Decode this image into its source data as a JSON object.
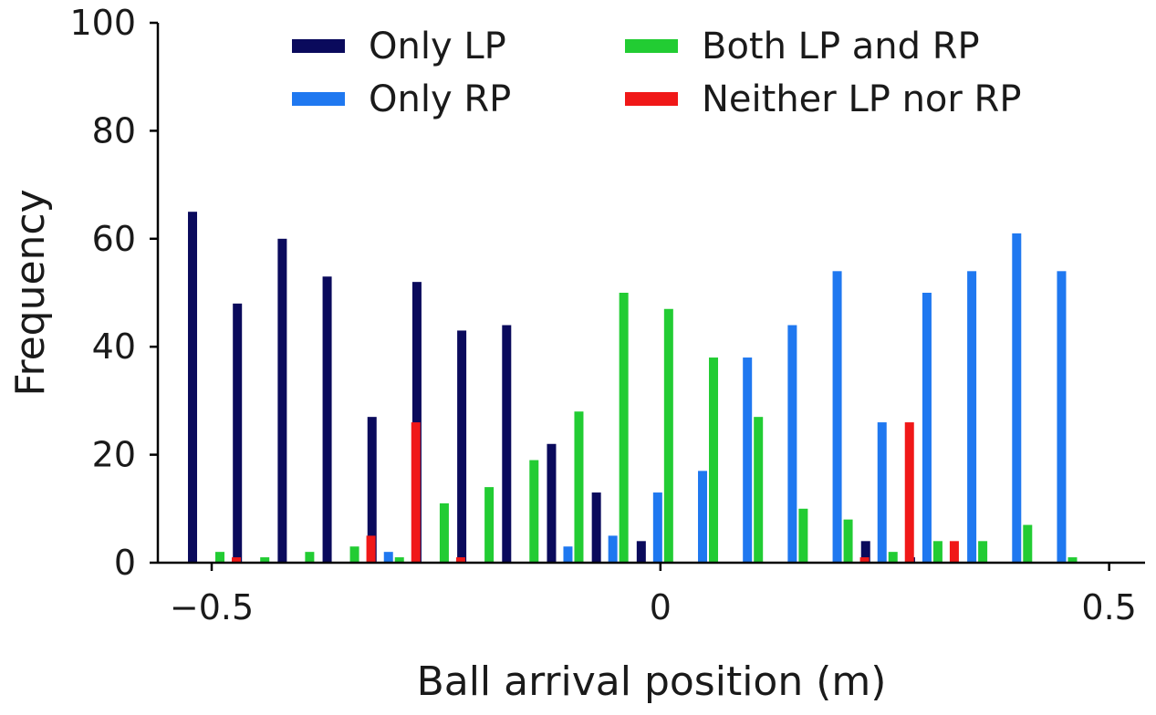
{
  "chart_data": {
    "type": "bar",
    "title": "",
    "xlabel": "Ball arrival position (m)",
    "ylabel": "Frequency",
    "xlim": [
      -0.56,
      0.54
    ],
    "ylim": [
      0,
      100
    ],
    "xticks": [
      {
        "value": -0.5,
        "label": "−0.5"
      },
      {
        "value": 0,
        "label": "0"
      },
      {
        "value": 0.5,
        "label": "0.5"
      }
    ],
    "yticks": [
      {
        "value": 0,
        "label": "0"
      },
      {
        "value": 20,
        "label": "20"
      },
      {
        "value": 40,
        "label": "40"
      },
      {
        "value": 60,
        "label": "60"
      },
      {
        "value": 80,
        "label": "80"
      },
      {
        "value": 100,
        "label": "100"
      }
    ],
    "grid": false,
    "legend_position": "top",
    "x": [
      -0.5,
      -0.45,
      -0.4,
      -0.35,
      -0.3,
      -0.25,
      -0.2,
      -0.15,
      -0.1,
      -0.05,
      0.0,
      0.05,
      0.1,
      0.15,
      0.2,
      0.25,
      0.3,
      0.35,
      0.4,
      0.45,
      0.5
    ],
    "series": [
      {
        "name": "Only LP",
        "color": "#0a0a5c",
        "values": [
          65,
          48,
          60,
          53,
          27,
          52,
          43,
          44,
          22,
          13,
          4,
          0,
          0,
          0,
          0,
          4,
          1,
          0,
          0,
          0,
          0
        ]
      },
      {
        "name": "Only RP",
        "color": "#1f78f0",
        "values": [
          0,
          0,
          0,
          0,
          2,
          0,
          0,
          0,
          3,
          5,
          13,
          17,
          38,
          44,
          54,
          26,
          50,
          54,
          61,
          54,
          0
        ]
      },
      {
        "name": "Both LP and RP",
        "color": "#22cc33",
        "values": [
          2,
          1,
          2,
          3,
          1,
          11,
          14,
          19,
          28,
          50,
          47,
          38,
          27,
          10,
          8,
          2,
          4,
          4,
          7,
          1,
          0
        ]
      },
      {
        "name": "Neither LP nor RP",
        "color": "#f01818",
        "values": [
          1,
          0,
          0,
          5,
          26,
          1,
          0,
          0,
          0,
          0,
          0,
          0,
          0,
          0,
          1,
          26,
          4,
          0,
          0,
          0,
          0
        ]
      }
    ]
  }
}
